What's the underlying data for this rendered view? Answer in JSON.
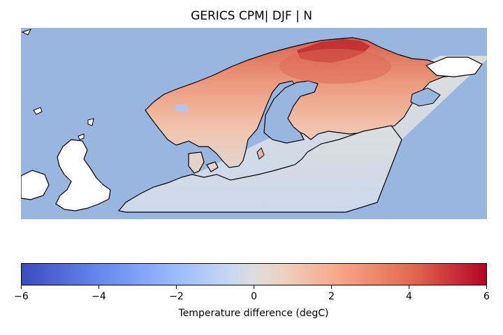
{
  "figure": {
    "title": "GERICS CPM| DJF | N"
  },
  "colors": {
    "ocean": "#98B6E0",
    "land_outline": "#000000",
    "uk_land": "#FFFFFF",
    "neutral": "#DCDDDD",
    "cmap_low": "#3B4CC0",
    "cmap_high": "#B40426"
  },
  "colorbar": {
    "cmap": "coolwarm",
    "vmin": -6,
    "vmax": 6,
    "ticks": [
      {
        "label": "−6"
      },
      {
        "label": "−4"
      },
      {
        "label": "−2"
      },
      {
        "label": "0"
      },
      {
        "label": "2"
      },
      {
        "label": "4"
      },
      {
        "label": "6"
      }
    ],
    "label": "Temperature difference (degC)"
  }
}
